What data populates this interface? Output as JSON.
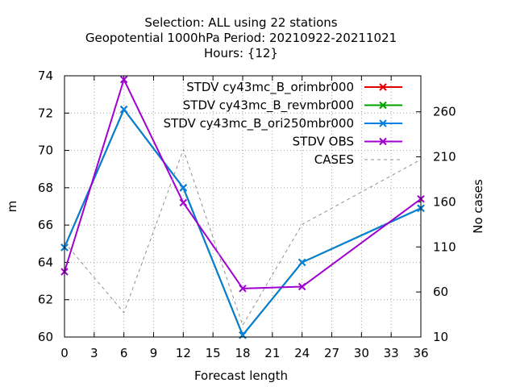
{
  "chart_data": {
    "type": "line",
    "title_lines": [
      "Selection: ALL using    22 stations",
      "Geopotential 1000hPa   Period: 20210922-20211021",
      "Hours: {12}"
    ],
    "xlabel": "Forecast length",
    "ylabel": "m",
    "y2label": "No cases",
    "xlim": [
      0,
      36
    ],
    "ylim": [
      60,
      74
    ],
    "y2lim": [
      10,
      300
    ],
    "x_ticks": [
      "0",
      "3",
      "6",
      "9",
      "12",
      "15",
      "18",
      "21",
      "24",
      "27",
      "30",
      "33",
      "36"
    ],
    "y_ticks": [
      "60",
      "62",
      "64",
      "66",
      "68",
      "70",
      "72",
      "74"
    ],
    "y2_ticks": [
      "10",
      "60",
      "110",
      "160",
      "210",
      "260"
    ],
    "grid": true,
    "legend_position": "top-right",
    "x": [
      0,
      6,
      12,
      18,
      24,
      36
    ],
    "series": [
      {
        "name": "STDV cy43mc_B_orimbr000",
        "color": "#e00000",
        "axis": "y",
        "marker": "x",
        "values": [
          64.8,
          72.2,
          68.0,
          60.1,
          64.0,
          66.9
        ]
      },
      {
        "name": "STDV cy43mc_B_revmbr000",
        "color": "#00a000",
        "axis": "y",
        "marker": "x",
        "values": [
          64.8,
          72.2,
          68.0,
          60.1,
          64.0,
          66.9
        ]
      },
      {
        "name": "STDV cy43mc_B_ori250mbr000",
        "color": "#0080e0",
        "axis": "y",
        "marker": "x",
        "values": [
          64.8,
          72.2,
          68.0,
          60.1,
          64.0,
          66.9
        ]
      },
      {
        "name": "STDV OBS",
        "color": "#a000d0",
        "axis": "y",
        "marker": "x",
        "values": [
          63.5,
          73.8,
          67.2,
          62.6,
          62.7,
          67.4
        ]
      },
      {
        "name": "CASES",
        "color": "#909090",
        "axis": "y2",
        "dashed": true,
        "values": [
          115,
          37,
          218,
          23,
          135,
          207
        ]
      }
    ]
  }
}
